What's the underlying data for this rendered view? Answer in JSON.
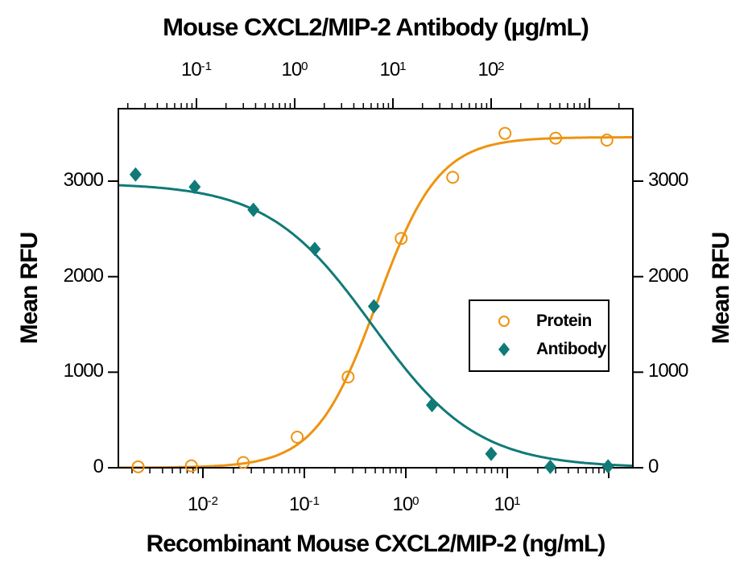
{
  "chart_data": {
    "type": "scatter",
    "title": "Mouse CXCL2/MIP-2 Antibody (µg/mL)",
    "xlabel_bottom": "Recombinant Mouse CXCL2/MIP-2 (ng/mL)",
    "ylabel_left": "Mean RFU",
    "ylabel_right": "Mean RFU",
    "grid": false,
    "y_axis": {
      "range": [
        0,
        3760
      ],
      "ticks": [
        0,
        1000,
        2000,
        3000
      ],
      "tick_labels": [
        "0",
        "1000",
        "2000",
        "3000"
      ]
    },
    "bottom_axis": {
      "scale": "log",
      "unit": "ng/mL",
      "range_approx": [
        0.0015,
        200
      ],
      "tick_base": "10",
      "ticks": [
        {
          "value": 0.01,
          "exp": "-2"
        },
        {
          "value": 0.1,
          "exp": "-1"
        },
        {
          "value": 1,
          "exp": "0"
        },
        {
          "value": 10,
          "exp": "1"
        }
      ]
    },
    "top_axis": {
      "scale": "log",
      "unit": "µg/mL",
      "range_approx": [
        0.016,
        2300
      ],
      "tick_base": "10",
      "ticks": [
        {
          "value": 0.1,
          "exp": "-1"
        },
        {
          "value": 1,
          "exp": "0"
        },
        {
          "value": 10,
          "exp": "1"
        },
        {
          "value": 100,
          "exp": "2"
        }
      ]
    },
    "series": [
      {
        "name": "Protein",
        "axis": "bottom",
        "marker": "open-circle",
        "color": "#EE9310",
        "x": [
          0.0023,
          0.0077,
          0.025,
          0.085,
          0.27,
          0.9,
          2.9,
          9.5,
          30,
          96
        ],
        "y": [
          10,
          20,
          55,
          320,
          950,
          2400,
          3040,
          3500,
          3450,
          3430
        ],
        "fit": {
          "model": "4PL",
          "top": 3460,
          "bottom": 0,
          "c50": 0.52,
          "hill": 1.43,
          "direction": "increasing"
        }
      },
      {
        "name": "Antibody",
        "axis": "top",
        "marker": "filled-diamond",
        "color": "#107A78",
        "x": [
          0.024,
          0.096,
          0.38,
          1.6,
          6.4,
          25,
          100,
          400,
          1550
        ],
        "y": [
          3070,
          2940,
          2700,
          2290,
          1690,
          655,
          145,
          10,
          15
        ],
        "fit": {
          "model": "4PL",
          "top": 2980,
          "bottom": 0,
          "c50": 6.2,
          "hill": 0.817,
          "direction": "decreasing"
        }
      }
    ],
    "legend": {
      "position": "middle-right",
      "items": [
        "Protein",
        "Antibody"
      ]
    },
    "colors": {
      "protein": "#EE9310",
      "antibody": "#107A78",
      "axis": "#000000",
      "background": "#FFFFFF"
    }
  }
}
